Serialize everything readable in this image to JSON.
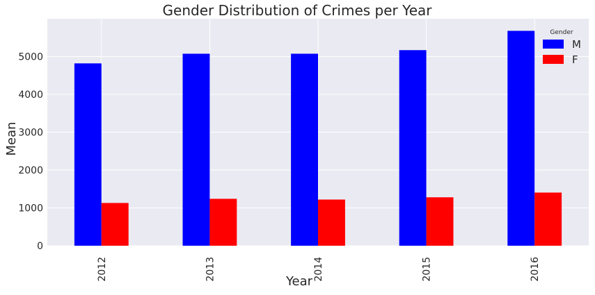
{
  "chart_data": {
    "type": "bar",
    "title": "Gender Distribution of Crimes per Year",
    "xlabel": "Year",
    "ylabel": "Mean",
    "categories": [
      "2012",
      "2013",
      "2014",
      "2015",
      "2016"
    ],
    "series": [
      {
        "name": "M",
        "color": "#0000ff",
        "values": [
          4820,
          5075,
          5075,
          5170,
          5680
        ]
      },
      {
        "name": "F",
        "color": "#ff0000",
        "values": [
          1130,
          1240,
          1220,
          1280,
          1405
        ]
      }
    ],
    "ylim": [
      0,
      6000
    ],
    "yticks": [
      0,
      1000,
      2000,
      3000,
      4000,
      5000
    ],
    "grid": true,
    "legend": {
      "title": "Gender",
      "placement": "top-right"
    },
    "background": "#eaeaf2"
  }
}
